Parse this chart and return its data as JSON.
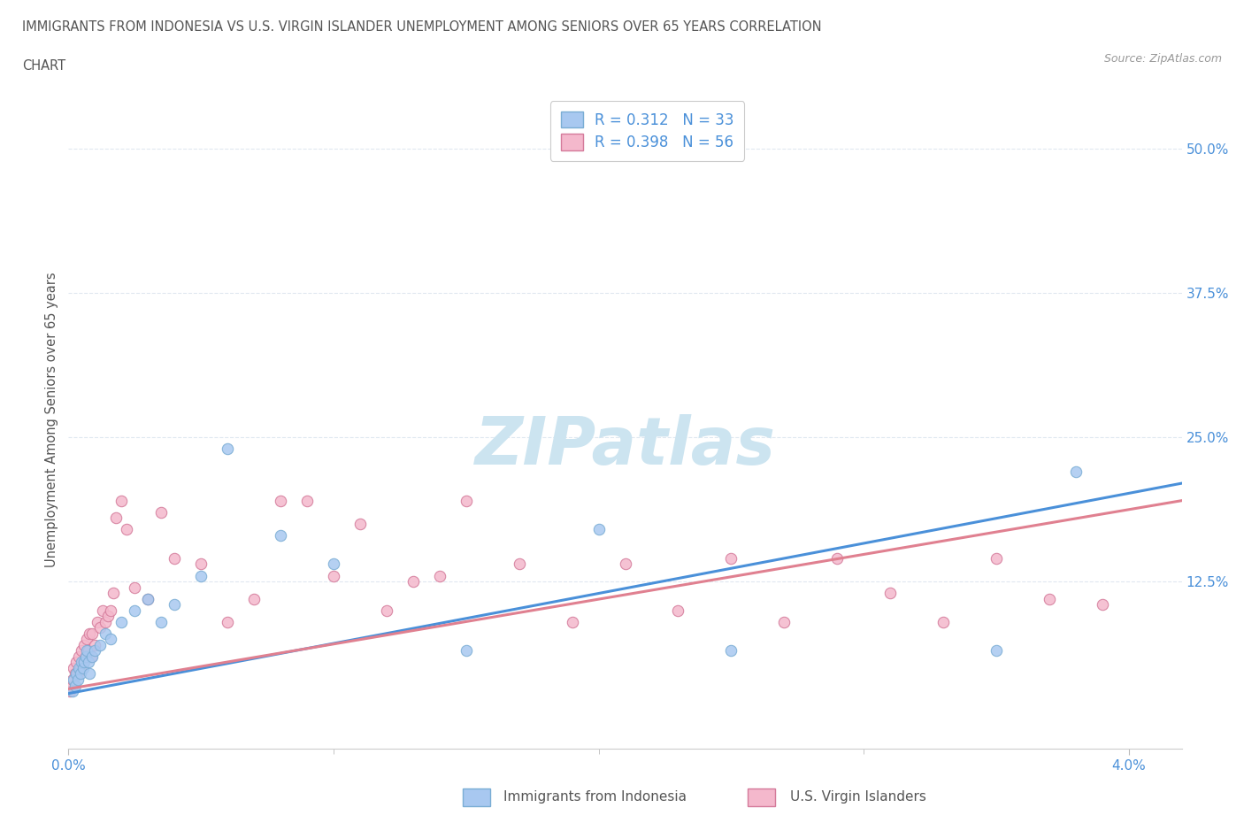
{
  "title_line1": "IMMIGRANTS FROM INDONESIA VS U.S. VIRGIN ISLANDER UNEMPLOYMENT AMONG SENIORS OVER 65 YEARS CORRELATION",
  "title_line2": "CHART",
  "source": "Source: ZipAtlas.com",
  "ylabel": "Unemployment Among Seniors over 65 years",
  "xlim": [
    0.0,
    0.042
  ],
  "ylim": [
    -0.02,
    0.55
  ],
  "y_tick_pos": [
    0.125,
    0.25,
    0.375,
    0.5
  ],
  "y_tick_labels": [
    "12.5%",
    "25.0%",
    "37.5%",
    "50.0%"
  ],
  "x_tick_pos": [
    0.0,
    0.04
  ],
  "x_tick_labels": [
    "0.0%",
    "4.0%"
  ],
  "legend_label1": "Immigrants from Indonesia",
  "legend_label2": "U.S. Virgin Islanders",
  "scatter_color1": "#a8c8f0",
  "scatter_edge1": "#7aadd4",
  "scatter_color2": "#f4b8cc",
  "scatter_edge2": "#d47a9a",
  "line_color1": "#4a90d9",
  "line_color2": "#e08090",
  "background_color": "#ffffff",
  "watermark_color": "#cce4f0",
  "title_color": "#555555",
  "axis_label_color": "#555555",
  "tick_label_color": "#4a90d9",
  "grid_color": "#e0e8f0",
  "indo_x": [
    0.00015,
    0.0002,
    0.00025,
    0.0003,
    0.00035,
    0.0004,
    0.00045,
    0.0005,
    0.00055,
    0.0006,
    0.00065,
    0.0007,
    0.00075,
    0.0008,
    0.0009,
    0.001,
    0.0012,
    0.0014,
    0.0016,
    0.002,
    0.0025,
    0.003,
    0.0035,
    0.004,
    0.005,
    0.006,
    0.008,
    0.01,
    0.015,
    0.02,
    0.025,
    0.035,
    0.038
  ],
  "indo_y": [
    0.03,
    0.04,
    0.035,
    0.045,
    0.04,
    0.05,
    0.045,
    0.055,
    0.05,
    0.055,
    0.06,
    0.065,
    0.055,
    0.045,
    0.06,
    0.065,
    0.07,
    0.08,
    0.075,
    0.09,
    0.1,
    0.11,
    0.09,
    0.105,
    0.13,
    0.24,
    0.165,
    0.14,
    0.065,
    0.17,
    0.065,
    0.065,
    0.22
  ],
  "usvi_x": [
    5e-05,
    0.0001,
    0.00015,
    0.0002,
    0.00025,
    0.0003,
    0.00035,
    0.0004,
    0.00045,
    0.0005,
    0.00055,
    0.0006,
    0.00065,
    0.0007,
    0.00075,
    0.0008,
    0.00085,
    0.0009,
    0.001,
    0.0011,
    0.0012,
    0.0013,
    0.0014,
    0.0015,
    0.0016,
    0.0017,
    0.0018,
    0.002,
    0.0022,
    0.0025,
    0.003,
    0.0035,
    0.004,
    0.005,
    0.006,
    0.007,
    0.008,
    0.009,
    0.01,
    0.011,
    0.012,
    0.013,
    0.014,
    0.015,
    0.017,
    0.019,
    0.021,
    0.023,
    0.025,
    0.027,
    0.029,
    0.031,
    0.033,
    0.035,
    0.037,
    0.039
  ],
  "usvi_y": [
    0.03,
    0.035,
    0.04,
    0.05,
    0.045,
    0.055,
    0.045,
    0.06,
    0.05,
    0.065,
    0.055,
    0.07,
    0.06,
    0.075,
    0.065,
    0.08,
    0.06,
    0.08,
    0.07,
    0.09,
    0.085,
    0.1,
    0.09,
    0.095,
    0.1,
    0.115,
    0.18,
    0.195,
    0.17,
    0.12,
    0.11,
    0.185,
    0.145,
    0.14,
    0.09,
    0.11,
    0.195,
    0.195,
    0.13,
    0.175,
    0.1,
    0.125,
    0.13,
    0.195,
    0.14,
    0.09,
    0.14,
    0.1,
    0.145,
    0.09,
    0.145,
    0.115,
    0.09,
    0.145,
    0.11,
    0.105
  ]
}
